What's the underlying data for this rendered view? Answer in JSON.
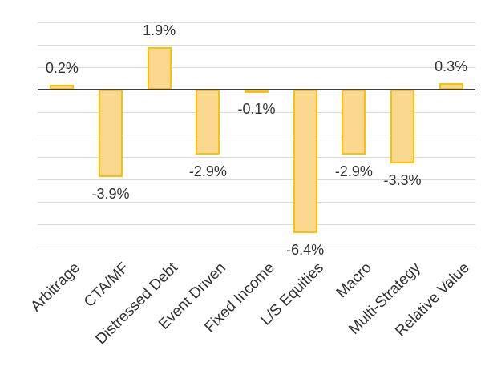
{
  "chart_data": {
    "type": "bar",
    "title": "",
    "xlabel": "",
    "ylabel": "",
    "categories": [
      "Arbitrage",
      "CTA/MF",
      "Distressed Debt",
      "Event Driven",
      "Fixed Income",
      "L/S Equities",
      "Macro",
      "Multi-Strategy",
      "Relative Value"
    ],
    "values": [
      0.2,
      -3.9,
      1.9,
      -2.9,
      -0.1,
      -6.4,
      -2.9,
      -3.3,
      0.3
    ],
    "value_labels": [
      "0.2%",
      "-3.9%",
      "1.9%",
      "-2.9%",
      "-0.1%",
      "-6.4%",
      "-2.9%",
      "-3.3%",
      "0.3%"
    ],
    "ylim": [
      -7,
      3
    ],
    "grid_step": 1,
    "grid": true,
    "legend": false,
    "y_tick_labels_visible": false,
    "data_label_position": "outside-end",
    "category_label_rotation_deg": 45,
    "colors": {
      "bar_fill": "#FBD88F",
      "bar_border": "#FFC000",
      "axis_line": "#404040",
      "gridline": "#D9D9D9",
      "text": "#303030",
      "background": "#FFFFFF"
    }
  }
}
